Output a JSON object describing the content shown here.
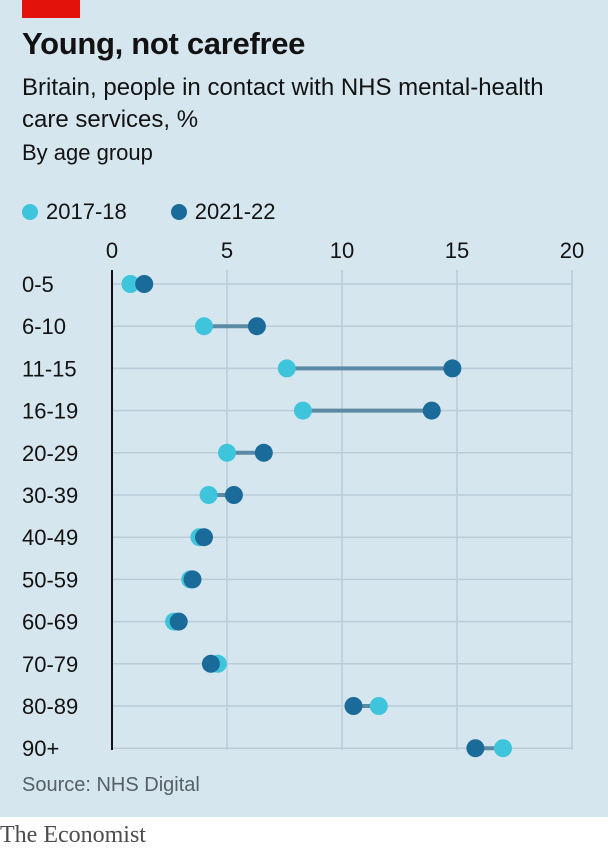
{
  "header": {
    "title": "Young, not carefree",
    "subtitle": "Britain, people in contact with NHS mental-health care services, %",
    "subtitle2": "By age group"
  },
  "footer": {
    "source": "Source: NHS Digital",
    "brand": "The Economist"
  },
  "colors": {
    "series_2017": "#3ec5dc",
    "series_2021": "#1a6a9a",
    "connector": "#5a8aa4",
    "grid": "#b9ccd8",
    "axis": "#121212",
    "brand_red": "#e3120b"
  },
  "chart_data": {
    "type": "dot-plot",
    "xlim": [
      0,
      20
    ],
    "xticks": [
      "0",
      "5",
      "10",
      "15",
      "20"
    ],
    "grid": true,
    "legend_position": "top-left",
    "categories": [
      "0-5",
      "6-10",
      "11-15",
      "16-19",
      "20-29",
      "30-39",
      "40-49",
      "50-59",
      "60-69",
      "70-79",
      "80-89",
      "90+"
    ],
    "series": [
      {
        "name": "2017-18",
        "values": [
          0.8,
          4.0,
          7.6,
          8.3,
          5.0,
          4.2,
          3.8,
          3.4,
          2.7,
          4.6,
          11.6,
          17.0
        ]
      },
      {
        "name": "2021-22",
        "values": [
          1.4,
          6.3,
          14.8,
          13.9,
          6.6,
          5.3,
          4.0,
          3.5,
          2.9,
          4.3,
          10.5,
          15.8
        ]
      }
    ]
  }
}
